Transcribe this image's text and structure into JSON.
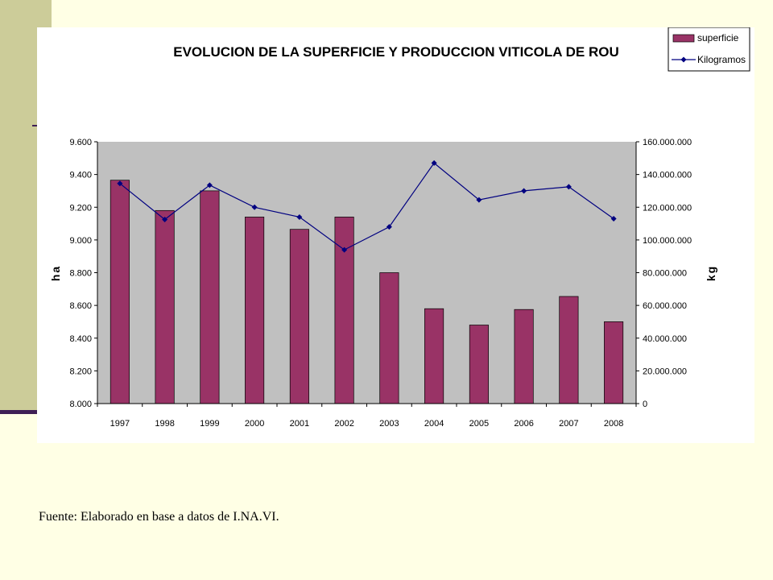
{
  "page": {
    "source_note": "Fuente:  Elaborado en base a datos de I.NA.VI."
  },
  "colors": {
    "background": "#ffffe5",
    "side_band": "#cccc99",
    "side_line": "#3f1f55",
    "plot_area": "#c0c0c0",
    "bar_fill": "#993366",
    "line_color": "#000080"
  },
  "chart_data": {
    "type": "bar",
    "title": "EVOLUCION DE LA SUPERFICIE Y PRODUCCION VITICOLA DE ROU",
    "categories": [
      "1997",
      "1998",
      "1999",
      "2000",
      "2001",
      "2002",
      "2003",
      "2004",
      "2005",
      "2006",
      "2007",
      "2008"
    ],
    "series": [
      {
        "name": "superficie",
        "type": "bar",
        "axis": "left",
        "values": [
          9365,
          9180,
          9300,
          9140,
          9065,
          9140,
          8800,
          8580,
          8480,
          8575,
          8655,
          8500
        ]
      },
      {
        "name": "Kilogramos",
        "type": "line",
        "axis": "right",
        "marker": "diamond",
        "values": [
          134500000,
          112500000,
          133500000,
          120000000,
          114000000,
          94000000,
          108000000,
          147000000,
          124500000,
          130000000,
          132500000,
          113000000
        ]
      }
    ],
    "ylabel": "ha",
    "ylim": [
      8000,
      9600
    ],
    "yticks": [
      "8.000",
      "8.200",
      "8.400",
      "8.600",
      "8.800",
      "9.000",
      "9.200",
      "9.400",
      "9.600"
    ],
    "y2label": "kg",
    "y2lim": [
      0,
      160000000
    ],
    "y2ticks": [
      "0",
      "20.000.000",
      "40.000.000",
      "60.000.000",
      "80.000.000",
      "100.000.000",
      "120.000.000",
      "140.000.000",
      "160.000.000"
    ],
    "grid": false,
    "legend": {
      "position": "top-right",
      "entries": [
        "superficie",
        "Kilogramos"
      ]
    }
  }
}
